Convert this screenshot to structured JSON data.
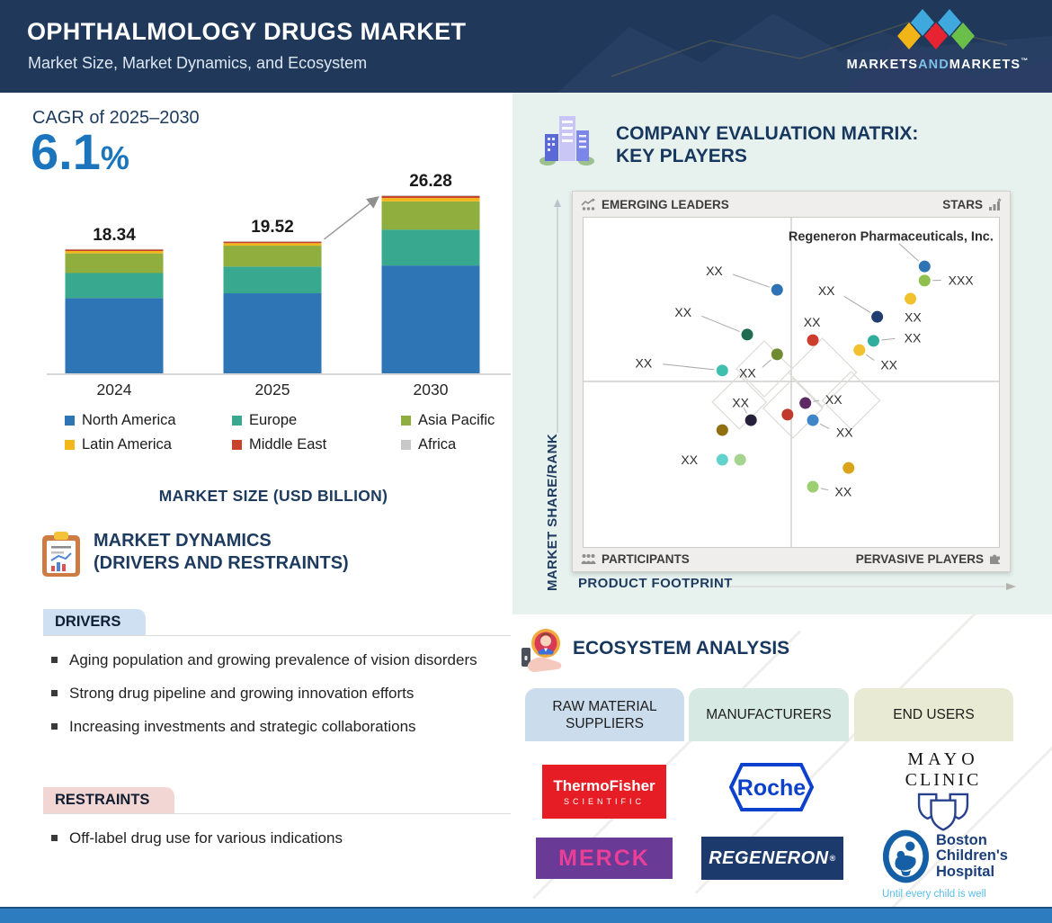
{
  "header": {
    "title": "OPHTHALMOLOGY DRUGS MARKET",
    "subtitle": "Market Size, Market Dynamics, and Ecosystem",
    "brand": {
      "markets1": "MARKETS",
      "and": "AND",
      "markets2": "MARKETS",
      "tm": "™"
    }
  },
  "cagr": {
    "label": "CAGR of 2025–2030",
    "value": "6.1",
    "percent": "%"
  },
  "chart_data": [
    {
      "type": "bar",
      "title": "MARKET SIZE (USD BILLION)",
      "categories": [
        "2024",
        "2025",
        "2030"
      ],
      "totals": [
        18.34,
        19.52,
        26.28
      ],
      "labels": [
        "18.34",
        "19.52",
        "26.28"
      ],
      "series": [
        {
          "name": "North America",
          "color": "#2e75b5",
          "values": [
            11.1,
            11.81,
            15.91
          ]
        },
        {
          "name": "Europe",
          "color": "#38a88e",
          "values": [
            3.7,
            3.94,
            5.3
          ]
        },
        {
          "name": "Asia Pacific",
          "color": "#8fae3e",
          "values": [
            2.9,
            3.09,
            4.16
          ]
        },
        {
          "name": "Latin America",
          "color": "#f3b71c",
          "values": [
            0.35,
            0.37,
            0.5
          ]
        },
        {
          "name": "Middle East",
          "color": "#c8432c",
          "values": [
            0.2,
            0.21,
            0.29
          ]
        },
        {
          "name": "Africa",
          "color": "#c8c8c8",
          "values": [
            0.09,
            0.1,
            0.12
          ]
        }
      ],
      "ylim": [
        0,
        26.28
      ],
      "legend_position": "bottom",
      "annotation": "growth arrow from 2025 bar to 2030 bar"
    },
    {
      "type": "scatter",
      "x_axis": "PRODUCT FOOTPRINT",
      "y_axis": "MARKET SHARE/RANK",
      "quadrants": {
        "top_left": "EMERGING LEADERS",
        "top_right": "STARS",
        "bottom_left": "PARTICIPANTS",
        "bottom_right": "PERVASIVE PLAYERS"
      },
      "points": [
        {
          "x": 46.6,
          "y": 21.9,
          "color": "#2e74b5",
          "label": "XX",
          "lx": 33.5,
          "ly": 17.5,
          "anchor": "end",
          "line": true
        },
        {
          "x": 39.4,
          "y": 35.5,
          "color": "#1e6b52",
          "label": "XX",
          "lx": 26.0,
          "ly": 30.0,
          "anchor": "end",
          "line": true
        },
        {
          "x": 46.6,
          "y": 41.5,
          "color": "#6e8b2f",
          "label": "XX",
          "lx": 41.5,
          "ly": 48.5,
          "anchor": "end",
          "line": true
        },
        {
          "x": 33.4,
          "y": 46.4,
          "color": "#3fbfae",
          "label": "XX",
          "lx": 16.5,
          "ly": 45.5,
          "anchor": "end",
          "line": true
        },
        {
          "x": 82.1,
          "y": 14.8,
          "color": "#2e74b5",
          "label": "Regeneron Pharmaceuticals, Inc.",
          "lx": 74.0,
          "ly": 7.0,
          "anchor": "middle",
          "line": true,
          "bold": true
        },
        {
          "x": 82.1,
          "y": 19.1,
          "color": "#8fbf4d",
          "label": "XXX",
          "lx": 87.8,
          "ly": 20.3,
          "anchor": "start",
          "line": true
        },
        {
          "x": 78.7,
          "y": 24.6,
          "color": "#f2c12e",
          "label": "XX",
          "lx": 79.3,
          "ly": 31.5,
          "anchor": "middle",
          "line": false
        },
        {
          "x": 70.7,
          "y": 30.1,
          "color": "#1f3d6e",
          "label": "XX",
          "lx": 60.5,
          "ly": 23.5,
          "anchor": "end",
          "line": true
        },
        {
          "x": 55.2,
          "y": 37.2,
          "color": "#cc3d2e",
          "label": "XX",
          "lx": 55.0,
          "ly": 33.0,
          "anchor": "middle",
          "line": false
        },
        {
          "x": 69.8,
          "y": 37.4,
          "color": "#2fae9e",
          "label": "XX",
          "lx": 77.2,
          "ly": 37.8,
          "anchor": "start",
          "line": true
        },
        {
          "x": 66.4,
          "y": 40.2,
          "color": "#f2c12e",
          "label": "XX",
          "lx": 71.5,
          "ly": 46.0,
          "anchor": "start",
          "line": true
        },
        {
          "x": 53.4,
          "y": 56.3,
          "color": "#5d2a63",
          "label": "XX",
          "lx": 58.2,
          "ly": 56.5,
          "anchor": "start",
          "line": true
        },
        {
          "x": 49.1,
          "y": 59.8,
          "color": "#c0392b",
          "label": "",
          "line": false
        },
        {
          "x": 55.2,
          "y": 61.5,
          "color": "#3e86c8",
          "label": "XX",
          "lx": 60.8,
          "ly": 66.5,
          "anchor": "start",
          "line": true
        },
        {
          "x": 40.3,
          "y": 61.5,
          "color": "#27203a",
          "label": "XX",
          "lx": 37.8,
          "ly": 57.5,
          "anchor": "middle",
          "line": true
        },
        {
          "x": 33.4,
          "y": 64.5,
          "color": "#8f6f0f",
          "label": "",
          "line": false
        },
        {
          "x": 33.4,
          "y": 73.5,
          "color": "#62d2cc",
          "label": "XX",
          "lx": 27.5,
          "ly": 74.8,
          "anchor": "end",
          "line": false
        },
        {
          "x": 37.7,
          "y": 73.5,
          "color": "#a5d48e",
          "label": "",
          "line": false
        },
        {
          "x": 63.8,
          "y": 76.0,
          "color": "#d9a419",
          "label": "",
          "line": false
        },
        {
          "x": 55.2,
          "y": 81.7,
          "color": "#9ccf72",
          "label": "XX",
          "lx": 60.5,
          "ly": 84.5,
          "anchor": "start",
          "line": true
        }
      ],
      "diamonds": [
        {
          "cx": 43.5,
          "cy": 45.9,
          "r": 31
        },
        {
          "cx": 57.5,
          "cy": 47.0,
          "r": 38
        },
        {
          "cx": 37.5,
          "cy": 56.0,
          "r": 30
        },
        {
          "cx": 50.4,
          "cy": 57.9,
          "r": 33
        },
        {
          "cx": 64.4,
          "cy": 55.5,
          "r": 32
        }
      ]
    }
  ],
  "matrix": {
    "heading1": "COMPANY EVALUATION MATRIX:",
    "heading2": "KEY PLAYERS"
  },
  "dynamics": {
    "heading1": "MARKET DYNAMICS",
    "heading2": "(DRIVERS AND RESTRAINTS)",
    "drivers": {
      "label": "DRIVERS",
      "items": [
        "Aging population and growing prevalence of vision disorders",
        "Strong drug pipeline and growing innovation efforts",
        "Increasing investments and strategic collaborations"
      ]
    },
    "restraints": {
      "label": "RESTRAINTS",
      "items": [
        "Off-label drug use for various indications"
      ]
    }
  },
  "ecosystem": {
    "heading": "ECOSYSTEM ANALYSIS",
    "columns": [
      {
        "label": "RAW MATERIAL SUPPLIERS"
      },
      {
        "label": "MANUFACTURERS"
      },
      {
        "label": "END USERS"
      }
    ],
    "logos": {
      "thermo": {
        "line1": "ThermoFisher",
        "line2": "SCIENTIFIC"
      },
      "roche": {
        "text": "Roche"
      },
      "mayo": {
        "line1": "MAYO",
        "line2": "CLINIC"
      },
      "merck": {
        "text": "MERCK"
      },
      "regeneron": {
        "text": "REGENERON",
        "reg": "®"
      },
      "boston": {
        "line1": "Boston",
        "line2": "Children's",
        "line3": "Hospital",
        "tagline": "Until every child is well"
      }
    }
  },
  "colors": {
    "accent_blue": "#1b75bc",
    "navy": "#1d3a5f",
    "panel_mint": "#e7f2ef",
    "footer_blue": "#2e7cc0"
  }
}
